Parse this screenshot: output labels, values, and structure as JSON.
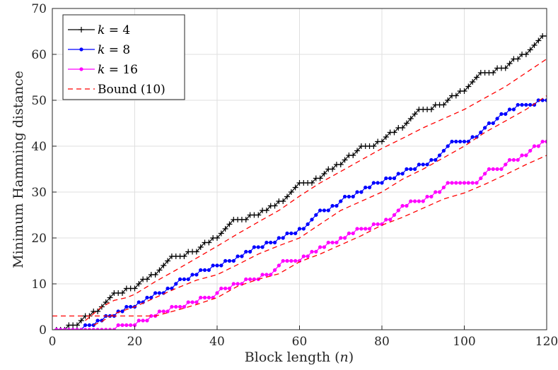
{
  "chart_data": {
    "type": "line",
    "title": "",
    "xlabel": "Block length (n)",
    "ylabel": "Minimum Hamming distance",
    "xlim": [
      0,
      120
    ],
    "ylim": [
      0,
      70
    ],
    "xticks": [
      "0",
      "20",
      "40",
      "60",
      "80",
      "100",
      "120"
    ],
    "yticks": [
      "0",
      "10",
      "20",
      "30",
      "40",
      "50",
      "60",
      "70"
    ],
    "grid": true,
    "legend_position": "top-left",
    "series": [
      {
        "name": "k = 4",
        "legend_label": "k = 4",
        "color": "#000000",
        "marker": "plus",
        "dash": "solid",
        "x": [
          1,
          2,
          3,
          4,
          5,
          6,
          7,
          8,
          9,
          10,
          11,
          12,
          13,
          14,
          15,
          16,
          17,
          18,
          19,
          20,
          21,
          22,
          23,
          24,
          25,
          26,
          27,
          28,
          29,
          30,
          31,
          32,
          33,
          34,
          35,
          36,
          37,
          38,
          39,
          40,
          41,
          42,
          43,
          44,
          45,
          46,
          47,
          48,
          49,
          50,
          51,
          52,
          53,
          54,
          55,
          56,
          57,
          58,
          59,
          60,
          61,
          62,
          63,
          64,
          65,
          66,
          67,
          68,
          69,
          70,
          71,
          72,
          73,
          74,
          75,
          76,
          77,
          78,
          79,
          80,
          81,
          82,
          83,
          84,
          85,
          86,
          87,
          88,
          89,
          90,
          91,
          92,
          93,
          94,
          95,
          96,
          97,
          98,
          99,
          100,
          101,
          102,
          103,
          104,
          105,
          106,
          107,
          108,
          109,
          110,
          111,
          112,
          113,
          114,
          115,
          116,
          117,
          118,
          119,
          120
        ],
        "y": [
          0,
          0,
          0,
          1,
          1,
          1,
          2,
          3,
          3,
          4,
          4,
          5,
          6,
          7,
          8,
          8,
          8,
          9,
          9,
          9,
          10,
          11,
          11,
          12,
          12,
          13,
          14,
          15,
          16,
          16,
          16,
          16,
          17,
          17,
          17,
          18,
          19,
          19,
          20,
          20,
          21,
          22,
          23,
          24,
          24,
          24,
          24,
          25,
          25,
          25,
          26,
          26,
          27,
          27,
          28,
          28,
          29,
          30,
          31,
          32,
          32,
          32,
          32,
          33,
          33,
          34,
          35,
          35,
          36,
          36,
          37,
          38,
          38,
          39,
          40,
          40,
          40,
          40,
          41,
          41,
          42,
          43,
          43,
          44,
          44,
          45,
          46,
          47,
          48,
          48,
          48,
          48,
          49,
          49,
          49,
          50,
          51,
          51,
          52,
          52,
          53,
          54,
          55,
          56,
          56,
          56,
          56,
          57,
          57,
          57,
          58,
          59,
          59,
          60,
          60,
          61,
          62,
          63,
          64,
          64
        ]
      },
      {
        "name": "k = 8",
        "legend_label": "k = 8",
        "color": "#0000ff",
        "marker": "dot",
        "dash": "solid",
        "x": [
          1,
          2,
          3,
          4,
          5,
          6,
          7,
          8,
          9,
          10,
          11,
          12,
          13,
          14,
          15,
          16,
          17,
          18,
          19,
          20,
          21,
          22,
          23,
          24,
          25,
          26,
          27,
          28,
          29,
          30,
          31,
          32,
          33,
          34,
          35,
          36,
          37,
          38,
          39,
          40,
          41,
          42,
          43,
          44,
          45,
          46,
          47,
          48,
          49,
          50,
          51,
          52,
          53,
          54,
          55,
          56,
          57,
          58,
          59,
          60,
          61,
          62,
          63,
          64,
          65,
          66,
          67,
          68,
          69,
          70,
          71,
          72,
          73,
          74,
          75,
          76,
          77,
          78,
          79,
          80,
          81,
          82,
          83,
          84,
          85,
          86,
          87,
          88,
          89,
          90,
          91,
          92,
          93,
          94,
          95,
          96,
          97,
          98,
          99,
          100,
          101,
          102,
          103,
          104,
          105,
          106,
          107,
          108,
          109,
          110,
          111,
          112,
          113,
          114,
          115,
          116,
          117,
          118,
          119,
          120
        ],
        "y": [
          0,
          0,
          0,
          0,
          0,
          0,
          0,
          1,
          1,
          1,
          2,
          2,
          3,
          3,
          3,
          4,
          4,
          5,
          5,
          5,
          6,
          6,
          7,
          7,
          8,
          8,
          8,
          9,
          9,
          10,
          11,
          11,
          11,
          12,
          12,
          13,
          13,
          13,
          14,
          14,
          14,
          15,
          15,
          15,
          16,
          16,
          17,
          17,
          18,
          18,
          18,
          19,
          19,
          19,
          20,
          20,
          21,
          21,
          21,
          22,
          22,
          23,
          24,
          25,
          26,
          26,
          26,
          27,
          27,
          28,
          29,
          29,
          29,
          30,
          30,
          31,
          31,
          32,
          32,
          32,
          33,
          33,
          33,
          34,
          34,
          35,
          35,
          35,
          36,
          36,
          36,
          37,
          37,
          38,
          39,
          40,
          41,
          41,
          41,
          41,
          41,
          42,
          42,
          43,
          44,
          45,
          45,
          46,
          47,
          47,
          48,
          48,
          49,
          49,
          49,
          49,
          49,
          50,
          50,
          50
        ]
      },
      {
        "name": "k = 16",
        "legend_label": "k = 16",
        "color": "#ff00ff",
        "marker": "dot",
        "dash": "solid",
        "x": [
          1,
          2,
          3,
          4,
          5,
          6,
          7,
          8,
          9,
          10,
          11,
          12,
          13,
          14,
          15,
          16,
          17,
          18,
          19,
          20,
          21,
          22,
          23,
          24,
          25,
          26,
          27,
          28,
          29,
          30,
          31,
          32,
          33,
          34,
          35,
          36,
          37,
          38,
          39,
          40,
          41,
          42,
          43,
          44,
          45,
          46,
          47,
          48,
          49,
          50,
          51,
          52,
          53,
          54,
          55,
          56,
          57,
          58,
          59,
          60,
          61,
          62,
          63,
          64,
          65,
          66,
          67,
          68,
          69,
          70,
          71,
          72,
          73,
          74,
          75,
          76,
          77,
          78,
          79,
          80,
          81,
          82,
          83,
          84,
          85,
          86,
          87,
          88,
          89,
          90,
          91,
          92,
          93,
          94,
          95,
          96,
          97,
          98,
          99,
          100,
          101,
          102,
          103,
          104,
          105,
          106,
          107,
          108,
          109,
          110,
          111,
          112,
          113,
          114,
          115,
          116,
          117,
          118,
          119,
          120
        ],
        "y": [
          0,
          0,
          0,
          0,
          0,
          0,
          0,
          0,
          0,
          0,
          0,
          0,
          0,
          0,
          0,
          1,
          1,
          1,
          1,
          1,
          2,
          2,
          2,
          3,
          3,
          4,
          4,
          4,
          5,
          5,
          5,
          5,
          6,
          6,
          6,
          7,
          7,
          7,
          7,
          8,
          9,
          9,
          9,
          10,
          10,
          10,
          11,
          11,
          11,
          11,
          12,
          12,
          12,
          13,
          14,
          15,
          15,
          15,
          15,
          15,
          16,
          16,
          17,
          17,
          18,
          18,
          19,
          19,
          19,
          20,
          20,
          21,
          21,
          22,
          22,
          22,
          22,
          23,
          23,
          23,
          24,
          24,
          25,
          26,
          27,
          27,
          28,
          28,
          28,
          28,
          29,
          29,
          30,
          30,
          31,
          32,
          32,
          32,
          32,
          32,
          32,
          32,
          32,
          33,
          34,
          35,
          35,
          35,
          35,
          36,
          37,
          37,
          37,
          38,
          38,
          39,
          40,
          40,
          41,
          41
        ]
      },
      {
        "name": "Bound (10)",
        "legend_label": "Bound (10)",
        "color": "#ff0000",
        "marker": "none",
        "dash": "dashed",
        "curves": [
          {
            "x": [
              8,
              10,
              12,
              15,
              18,
              20,
              25,
              30,
              35,
              40,
              45,
              50,
              55,
              60,
              65,
              70,
              75,
              80,
              85,
              90,
              95,
              100,
              105,
              110,
              115,
              120
            ],
            "y": [
              2,
              3.5,
              5,
              6.4,
              7,
              7.7,
              10.5,
              13,
              15.6,
              18.2,
              20.9,
              23.5,
              26,
              29.1,
              32,
              34.5,
              37,
              39.5,
              41.7,
              44,
              46,
              48,
              50.5,
              53,
              56,
              59
            ]
          },
          {
            "x": [
              10,
              12,
              15,
              20,
              25,
              30,
              35,
              40,
              45,
              50,
              55,
              60,
              65,
              70,
              75,
              80,
              85,
              90,
              95,
              100,
              105,
              110,
              115,
              120
            ],
            "y": [
              1,
              1.8,
              3.5,
              5,
              7,
              9,
              10.8,
              12,
              14.2,
              16.5,
              18.3,
              20,
              23,
              26,
              28,
              30,
              32.8,
              35,
              37.5,
              40,
              43,
              45.5,
              48,
              51
            ]
          },
          {
            "x": [
              0,
              5,
              10,
              15,
              20,
              25,
              30,
              35,
              40,
              45,
              50,
              55,
              60,
              65,
              70,
              75,
              80,
              85,
              90,
              95,
              100,
              105,
              110,
              115,
              120
            ],
            "y": [
              3,
              3,
              3,
              3,
              3,
              3,
              4.2,
              5.5,
              7,
              9.5,
              11,
              12.2,
              14.8,
              16.5,
              18.5,
              20.5,
              22.8,
              24.5,
              26.5,
              28.5,
              29.8,
              31.7,
              33.8,
              36,
              38
            ]
          }
        ]
      }
    ]
  }
}
